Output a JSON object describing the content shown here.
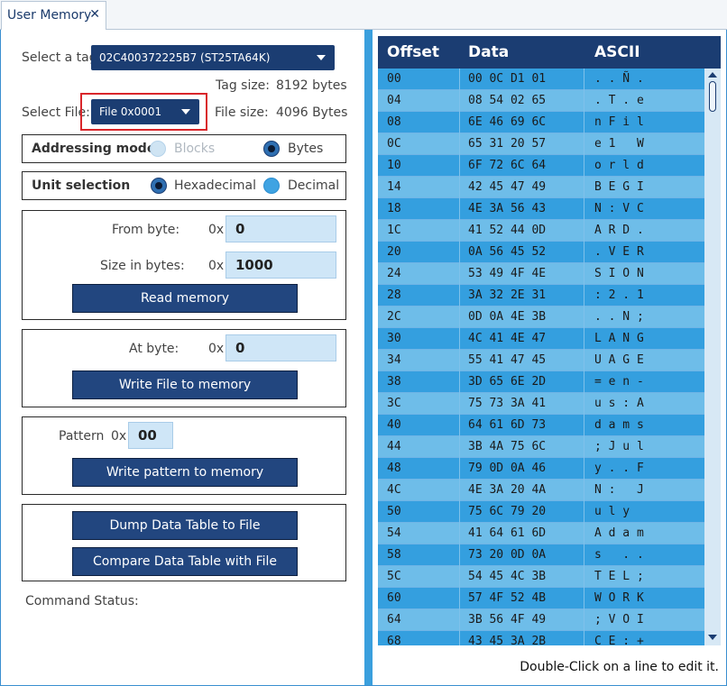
{
  "tab": {
    "title": "User Memory",
    "close": "✕"
  },
  "tag": {
    "label": "Select a tag:",
    "value": "02C400372225B7 (ST25TA64K)",
    "size_label": "Tag size:",
    "size_value": "8192 bytes"
  },
  "file": {
    "label": "Select File:",
    "value": "File 0x0001",
    "size_label": "File size:",
    "size_value": "4096 Bytes"
  },
  "addressing": {
    "title": "Addressing mode",
    "blocks": "Blocks",
    "bytes": "Bytes",
    "selected": "bytes"
  },
  "unit": {
    "title": "Unit selection",
    "hex": "Hexadecimal",
    "dec": "Decimal",
    "selected": "hex"
  },
  "read": {
    "from_label": "From byte:",
    "from_prefix": "0x",
    "from_value": "0",
    "size_label": "Size in bytes:",
    "size_prefix": "0x",
    "size_value": "1000",
    "button": "Read memory"
  },
  "write_file": {
    "at_label": "At byte:",
    "at_prefix": "0x",
    "at_value": "0",
    "button": "Write File to memory"
  },
  "pattern": {
    "label": "Pattern",
    "prefix": "0x",
    "value": "00",
    "button": "Write pattern to memory"
  },
  "table_actions": {
    "dump": "Dump Data Table to File",
    "compare": "Compare Data Table with File"
  },
  "status": {
    "label": "Command Status:"
  },
  "table": {
    "headers": {
      "offset": "Offset",
      "data": "Data",
      "ascii": "ASCII"
    },
    "rows": [
      {
        "offset": "00",
        "data": "00 0C D1 01",
        "ascii": ". . Ñ ."
      },
      {
        "offset": "04",
        "data": "08 54 02 65",
        "ascii": ". T . e"
      },
      {
        "offset": "08",
        "data": "6E 46 69 6C",
        "ascii": "n F i l"
      },
      {
        "offset": "0C",
        "data": "65 31 20 57",
        "ascii": "e 1   W"
      },
      {
        "offset": "10",
        "data": "6F 72 6C 64",
        "ascii": "o r l d"
      },
      {
        "offset": "14",
        "data": "42 45 47 49",
        "ascii": "B E G I"
      },
      {
        "offset": "18",
        "data": "4E 3A 56 43",
        "ascii": "N : V C"
      },
      {
        "offset": "1C",
        "data": "41 52 44 0D",
        "ascii": "A R D ."
      },
      {
        "offset": "20",
        "data": "0A 56 45 52",
        "ascii": ". V E R"
      },
      {
        "offset": "24",
        "data": "53 49 4F 4E",
        "ascii": "S I O N"
      },
      {
        "offset": "28",
        "data": "3A 32 2E 31",
        "ascii": ": 2 . 1"
      },
      {
        "offset": "2C",
        "data": "0D 0A 4E 3B",
        "ascii": ". . N ;"
      },
      {
        "offset": "30",
        "data": "4C 41 4E 47",
        "ascii": "L A N G"
      },
      {
        "offset": "34",
        "data": "55 41 47 45",
        "ascii": "U A G E"
      },
      {
        "offset": "38",
        "data": "3D 65 6E 2D",
        "ascii": "= e n -"
      },
      {
        "offset": "3C",
        "data": "75 73 3A 41",
        "ascii": "u s : A"
      },
      {
        "offset": "40",
        "data": "64 61 6D 73",
        "ascii": "d a m s"
      },
      {
        "offset": "44",
        "data": "3B 4A 75 6C",
        "ascii": "; J u l"
      },
      {
        "offset": "48",
        "data": "79 0D 0A 46",
        "ascii": "y . . F"
      },
      {
        "offset": "4C",
        "data": "4E 3A 20 4A",
        "ascii": "N :   J"
      },
      {
        "offset": "50",
        "data": "75 6C 79 20",
        "ascii": "u l y  "
      },
      {
        "offset": "54",
        "data": "41 64 61 6D",
        "ascii": "A d a m"
      },
      {
        "offset": "58",
        "data": "73 20 0D 0A",
        "ascii": "s   . ."
      },
      {
        "offset": "5C",
        "data": "54 45 4C 3B",
        "ascii": "T E L ;"
      },
      {
        "offset": "60",
        "data": "57 4F 52 4B",
        "ascii": "W O R K"
      },
      {
        "offset": "64",
        "data": "3B 56 4F 49",
        "ascii": "; V O I"
      },
      {
        "offset": "68",
        "data": "43 45 3A 2B",
        "ascii": "C E : +"
      }
    ]
  },
  "hint": "Double-Click on a line to edit it."
}
